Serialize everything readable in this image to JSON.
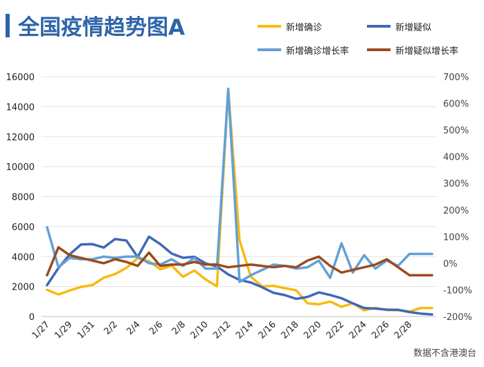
{
  "chart_data": {
    "type": "line",
    "title": "全国疫情趋势图A",
    "source": "数据不含港澳台",
    "categories": [
      "1/27",
      "1/28",
      "1/29",
      "1/30",
      "1/31",
      "2/1",
      "2/2",
      "2/3",
      "2/4",
      "2/5",
      "2/6",
      "2/7",
      "2/8",
      "2/9",
      "2/10",
      "2/11",
      "2/12",
      "2/13",
      "2/14",
      "2/15",
      "2/16",
      "2/17",
      "2/18",
      "2/19",
      "2/20",
      "2/21",
      "2/22",
      "2/23",
      "2/24",
      "2/25",
      "2/26",
      "2/27",
      "2/28",
      "2/29",
      "3/1"
    ],
    "x_tick_labels": [
      "1/27",
      "1/29",
      "1/31",
      "2/2",
      "2/4",
      "2/6",
      "2/8",
      "2/10",
      "2/12",
      "2/14",
      "2/16",
      "2/18",
      "2/20",
      "2/22",
      "2/24",
      "2/26",
      "2/28"
    ],
    "left_axis": {
      "range": [
        0,
        16000
      ],
      "ticks": [
        "0",
        "2000",
        "4000",
        "6000",
        "8000",
        "10000",
        "12000",
        "14000",
        "16000"
      ]
    },
    "right_axis": {
      "range": [
        -200,
        700
      ],
      "ticks": [
        "-200%",
        "-100%",
        "0%",
        "100%",
        "200%",
        "300%",
        "400%",
        "500%",
        "600%",
        "700%"
      ]
    },
    "series": [
      {
        "name": "新增确诊",
        "axis": "left",
        "color": "#f7bb10",
        "values": [
          1780,
          1470,
          1740,
          1980,
          2100,
          2590,
          2830,
          3240,
          3890,
          3700,
          3150,
          3400,
          2650,
          3070,
          2480,
          2020,
          15150,
          5090,
          2640,
          2010,
          2050,
          1890,
          1750,
          880,
          820,
          1000,
          650,
          890,
          410,
          580,
          430,
          420,
          330,
          570,
          570
        ]
      },
      {
        "name": "新增疑似",
        "axis": "left",
        "color": "#3f68b6",
        "values": [
          2100,
          3230,
          4150,
          4810,
          4830,
          4600,
          5170,
          5070,
          3970,
          5330,
          4830,
          4200,
          3920,
          3990,
          3550,
          3340,
          2810,
          2450,
          2270,
          1950,
          1580,
          1430,
          1180,
          1310,
          1610,
          1440,
          1220,
          880,
          570,
          530,
          460,
          450,
          300,
          200,
          140
        ]
      },
      {
        "name": "新增确诊增长率",
        "axis": "right",
        "color": "#62a0d8",
        "values": [
          135,
          -15,
          20,
          15,
          15,
          25,
          20,
          25,
          25,
          0,
          -5,
          15,
          -10,
          20,
          -20,
          -20,
          655,
          -70,
          -45,
          -25,
          -5,
          -10,
          -20,
          -15,
          10,
          -55,
          75,
          -35,
          30,
          -20,
          10,
          -10,
          35,
          35,
          35
        ]
      },
      {
        "name": "新增疑似增长率",
        "axis": "right",
        "color": "#9b4a1c",
        "values": [
          -45,
          60,
          30,
          20,
          10,
          0,
          15,
          5,
          -10,
          40,
          -10,
          -5,
          -5,
          5,
          -5,
          -5,
          -15,
          -10,
          -5,
          -10,
          -15,
          -10,
          -15,
          10,
          25,
          -10,
          -35,
          -25,
          -15,
          -5,
          15,
          -15,
          -45,
          -45,
          -45
        ]
      }
    ]
  }
}
